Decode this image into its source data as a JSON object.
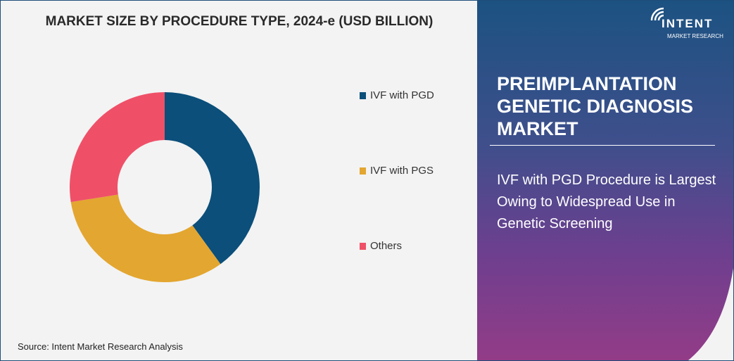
{
  "chart_data": {
    "type": "pie",
    "title": "MARKET SIZE BY PROCEDURE TYPE, 2024-e (USD BILLION)",
    "donut": true,
    "categories": [
      "IVF with PGD",
      "IVF with PGS",
      "Others"
    ],
    "values": [
      40,
      32.5,
      27.5
    ],
    "value_unit": "approximate share %",
    "colors": [
      "#0b4f7a",
      "#e3a630",
      "#ef5068"
    ],
    "legend_position": "right"
  },
  "source": "Source: Intent Market Research Analysis",
  "panel": {
    "title": "PREIMPLANTATION GENETIC DIAGNOSIS MARKET",
    "text": "IVF with PGD Procedure is Largest Owing to Widespread Use in Genetic  Screening"
  },
  "logo": {
    "name": "INTENT",
    "sub": "MARKET RESEARCH",
    "tm": "™"
  }
}
